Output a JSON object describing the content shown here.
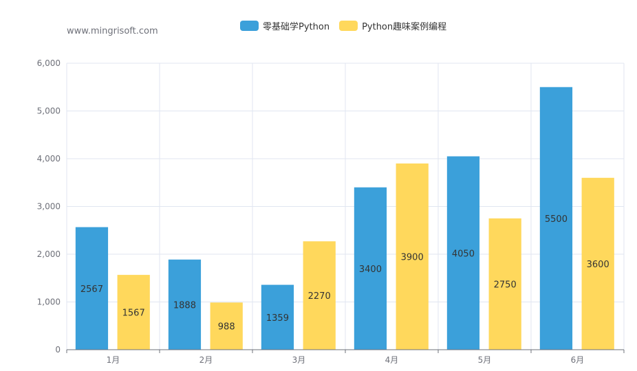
{
  "chart_data": {
    "type": "bar",
    "subtitle": "www.mingrisoft.com",
    "categories": [
      "1月",
      "2月",
      "3月",
      "4月",
      "5月",
      "6月"
    ],
    "series": [
      {
        "name": "零基础学Python",
        "color": "#3ba0da",
        "values": [
          2567,
          1888,
          1359,
          3400,
          4050,
          5500
        ]
      },
      {
        "name": "Python趣味案例编程",
        "color": "#ffd85c",
        "values": [
          1567,
          988,
          2270,
          3900,
          2750,
          3600
        ]
      }
    ],
    "ylim": [
      0,
      6000
    ],
    "yticks": [
      "0",
      "1,000",
      "2,000",
      "3,000",
      "4,000",
      "5,000",
      "6,000"
    ],
    "grid": true,
    "legend_position": "top-center"
  }
}
